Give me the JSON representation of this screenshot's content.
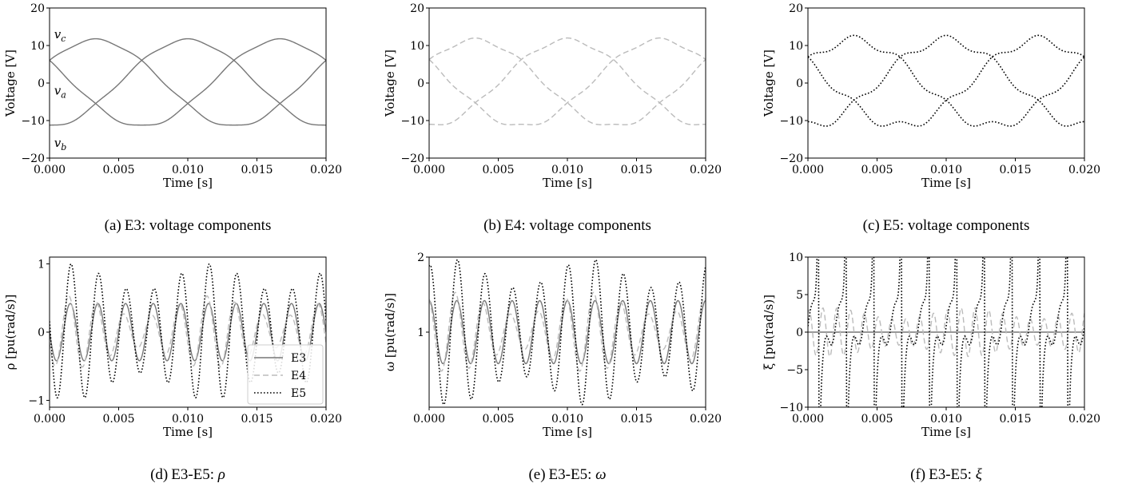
{
  "chart_data": [
    {
      "id": "a",
      "type": "line",
      "caption": {
        "letter": "(a)",
        "text": "E3: voltage components"
      },
      "xlabel": "Time [s]",
      "ylabel": "Voltage [V]",
      "xlim": [
        0,
        0.02
      ],
      "ylim": [
        -20,
        20
      ],
      "xticks": [
        0,
        0.005,
        0.01,
        0.015,
        0.02
      ],
      "xtick_labels": [
        "0.000",
        "0.005",
        "0.010",
        "0.015",
        "0.020"
      ],
      "yticks": [
        -20,
        -10,
        0,
        10,
        20
      ],
      "ytick_labels": [
        "−20",
        "−10",
        "0",
        "10",
        "20"
      ],
      "annotations": [
        {
          "base": "v",
          "sub": "c",
          "x": 0.0001,
          "y": 13
        },
        {
          "base": "v",
          "sub": "a",
          "x": 0.0001,
          "y": -2
        },
        {
          "base": "v",
          "sub": "b",
          "x": 0.0001,
          "y": -16
        }
      ],
      "series": [
        {
          "label": "va",
          "style": "solid",
          "color": "#777777",
          "model": "phase",
          "offset_deg": -90,
          "amp": 11.5,
          "ripple": 0.3
        },
        {
          "label": "vb",
          "style": "solid",
          "color": "#777777",
          "model": "phase",
          "offset_deg": 150,
          "amp": 11.5,
          "ripple": 0.3
        },
        {
          "label": "vc",
          "style": "solid",
          "color": "#777777",
          "model": "phase",
          "offset_deg": 30,
          "amp": 11.5,
          "ripple": 0.3
        }
      ]
    },
    {
      "id": "b",
      "type": "line",
      "caption": {
        "letter": "(b)",
        "text": "E4: voltage components"
      },
      "xlabel": "Time [s]",
      "ylabel": "Voltage [V]",
      "xlim": [
        0,
        0.02
      ],
      "ylim": [
        -20,
        20
      ],
      "xticks": [
        0,
        0.005,
        0.01,
        0.015,
        0.02
      ],
      "xtick_labels": [
        "0.000",
        "0.005",
        "0.010",
        "0.015",
        "0.020"
      ],
      "yticks": [
        -20,
        -10,
        0,
        10,
        20
      ],
      "ytick_labels": [
        "−20",
        "−10",
        "0",
        "10",
        "20"
      ],
      "annotations": [],
      "series": [
        {
          "label": "va",
          "style": "dashed",
          "color": "#bbbbbb",
          "model": "phase",
          "offset_deg": -90,
          "amp": 11.5,
          "ripple": 0.5
        },
        {
          "label": "vb",
          "style": "dashed",
          "color": "#bbbbbb",
          "model": "phase",
          "offset_deg": 150,
          "amp": 11.5,
          "ripple": 0.5
        },
        {
          "label": "vc",
          "style": "dashed",
          "color": "#bbbbbb",
          "model": "phase",
          "offset_deg": 30,
          "amp": 11.5,
          "ripple": 0.5
        }
      ]
    },
    {
      "id": "c",
      "type": "line",
      "caption": {
        "letter": "(c)",
        "text": "E5: voltage components"
      },
      "xlabel": "Time [s]",
      "ylabel": "Voltage [V]",
      "xlim": [
        0,
        0.02
      ],
      "ylim": [
        -20,
        20
      ],
      "xticks": [
        0,
        0.005,
        0.01,
        0.015,
        0.02
      ],
      "xtick_labels": [
        "0.000",
        "0.005",
        "0.010",
        "0.015",
        "0.020"
      ],
      "yticks": [
        -20,
        -10,
        0,
        10,
        20
      ],
      "ytick_labels": [
        "−20",
        "−10",
        "0",
        "10",
        "20"
      ],
      "annotations": [],
      "series": [
        {
          "label": "va",
          "style": "dotted",
          "color": "#000000",
          "model": "phase",
          "offset_deg": -90,
          "amp": 11.5,
          "ripple": 1.2
        },
        {
          "label": "vb",
          "style": "dotted",
          "color": "#000000",
          "model": "phase",
          "offset_deg": 150,
          "amp": 11.5,
          "ripple": 1.2
        },
        {
          "label": "vc",
          "style": "dotted",
          "color": "#000000",
          "model": "phase",
          "offset_deg": 30,
          "amp": 11.5,
          "ripple": 1.2
        }
      ]
    },
    {
      "id": "d",
      "type": "line",
      "caption": {
        "letter": "(d)",
        "text": "E3-E5:",
        "symbol": "ρ"
      },
      "xlabel": "Time [s]",
      "ylabel": "ρ [pu(rad/s)]",
      "xlim": [
        0,
        0.02
      ],
      "ylim": [
        -1.1,
        1.1
      ],
      "xticks": [
        0,
        0.005,
        0.01,
        0.015,
        0.02
      ],
      "xtick_labels": [
        "0.000",
        "0.005",
        "0.010",
        "0.015",
        "0.020"
      ],
      "yticks": [
        -1,
        0,
        1
      ],
      "ytick_labels": [
        "−1",
        "0",
        "1"
      ],
      "legend": {
        "loc": "lower-right",
        "entries": [
          {
            "label": "E3",
            "style": "solid",
            "color": "#777777"
          },
          {
            "label": "E4",
            "style": "dashed",
            "color": "#bbbbbb"
          },
          {
            "label": "E5",
            "style": "dotted",
            "color": "#000000"
          }
        ]
      },
      "series": [
        {
          "label": "E3",
          "style": "solid",
          "color": "#777777",
          "model": "osc",
          "base": 0,
          "amp": 0.42,
          "freq": 500,
          "phase_deg": 180,
          "amp_mod": 0
        },
        {
          "label": "E4",
          "style": "dashed",
          "color": "#bbbbbb",
          "model": "osc",
          "base": 0,
          "amp": 0.38,
          "freq": 500,
          "phase_deg": 200,
          "amp_mod": 0.4
        },
        {
          "label": "E5",
          "style": "dotted",
          "color": "#000000",
          "model": "osc",
          "base": 0,
          "amp": 0.8,
          "freq": 500,
          "phase_deg": 170,
          "amp_mod": 0.25
        }
      ]
    },
    {
      "id": "e",
      "type": "line",
      "caption": {
        "letter": "(e)",
        "text": "E3-E5:",
        "symbol": "ω"
      },
      "xlabel": "Time [s]",
      "ylabel": "ω [pu(rad/s)]",
      "xlim": [
        0,
        0.02
      ],
      "ylim": [
        0,
        2
      ],
      "xticks": [
        0,
        0.005,
        0.01,
        0.015,
        0.02
      ],
      "xtick_labels": [
        "0.000",
        "0.005",
        "0.010",
        "0.015",
        "0.020"
      ],
      "yticks": [
        1,
        2
      ],
      "ytick_labels": [
        "1",
        "2"
      ],
      "series": [
        {
          "label": "E3",
          "style": "solid",
          "color": "#777777",
          "model": "osc",
          "base": 1.0,
          "amp": 0.42,
          "freq": 500,
          "phase_deg": 90,
          "amp_mod": 0
        },
        {
          "label": "E4",
          "style": "dashed",
          "color": "#bbbbbb",
          "model": "osc",
          "base": 1.0,
          "amp": 0.38,
          "freq": 500,
          "phase_deg": 110,
          "amp_mod": 0.4
        },
        {
          "label": "E5",
          "style": "dotted",
          "color": "#000000",
          "model": "osc",
          "base": 1.0,
          "amp": 0.78,
          "freq": 500,
          "phase_deg": 80,
          "amp_mod": 0.25
        }
      ]
    },
    {
      "id": "f",
      "type": "line",
      "caption": {
        "letter": "(f)",
        "text": "E3-E5:",
        "symbol": "ξ"
      },
      "xlabel": "Time [s]",
      "ylabel": "ξ [pu(rad/s)]",
      "xlim": [
        0,
        0.02
      ],
      "ylim": [
        -10,
        10
      ],
      "xticks": [
        0,
        0.005,
        0.01,
        0.015,
        0.02
      ],
      "xtick_labels": [
        "0.000",
        "0.005",
        "0.010",
        "0.015",
        "0.020"
      ],
      "yticks": [
        -10,
        -5,
        0,
        5,
        10
      ],
      "ytick_labels": [
        "−10",
        "−5",
        "0",
        "5",
        "10"
      ],
      "series": [
        {
          "label": "E3",
          "style": "solid",
          "color": "#777777",
          "model": "flat",
          "base": 0
        },
        {
          "label": "E4",
          "style": "dashed",
          "color": "#bbbbbb",
          "model": "osc",
          "base": 0,
          "amp": 2.5,
          "freq": 1000,
          "phase_deg": 60,
          "amp_mod": 0.3
        },
        {
          "label": "E5",
          "style": "dotted",
          "color": "#000000",
          "model": "spiky",
          "base": 0,
          "amp": 9,
          "freq": 500,
          "phase_deg": 40
        }
      ]
    }
  ]
}
